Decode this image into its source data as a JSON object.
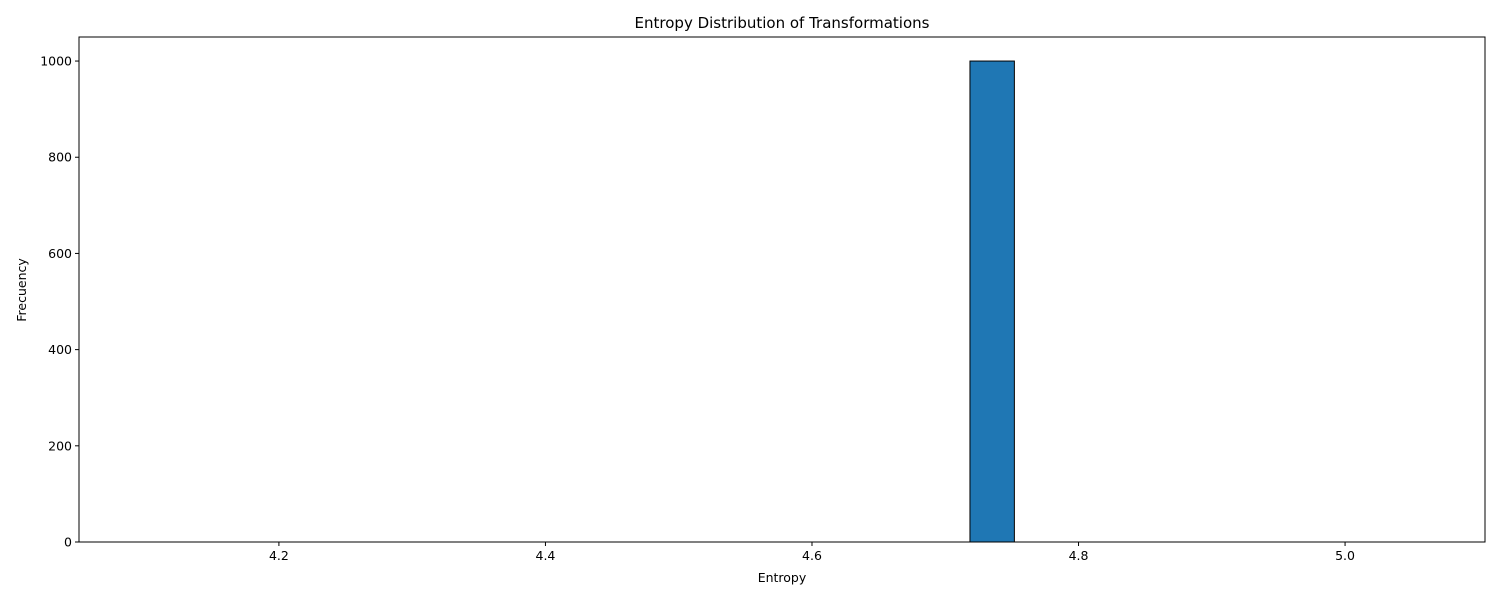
{
  "chart_data": {
    "type": "bar",
    "title": "Entropy Distribution of Transformations",
    "xlabel": "Entropy",
    "ylabel": "Frecuency",
    "xlim": [
      4.05,
      5.105
    ],
    "ylim": [
      0,
      1050
    ],
    "xticks": [
      4.2,
      4.4,
      4.6,
      4.8,
      5.0
    ],
    "xtick_labels": [
      "4.2",
      "4.4",
      "4.6",
      "4.8",
      "5.0"
    ],
    "yticks": [
      0,
      200,
      400,
      600,
      800,
      1000
    ],
    "ytick_labels": [
      "0",
      "200",
      "400",
      "600",
      "800",
      "1000"
    ],
    "bin_range": [
      4.0852,
      5.0852
    ],
    "bins": 30,
    "counts": [
      0,
      0,
      0,
      0,
      0,
      0,
      0,
      0,
      0,
      0,
      0,
      0,
      0,
      0,
      0,
      0,
      0,
      0,
      0,
      1000,
      0,
      0,
      0,
      0,
      0,
      0,
      0,
      0,
      0,
      0
    ],
    "bar_color": "#1f77b4",
    "edge_color": "#000000",
    "grid": false,
    "legend": false
  }
}
